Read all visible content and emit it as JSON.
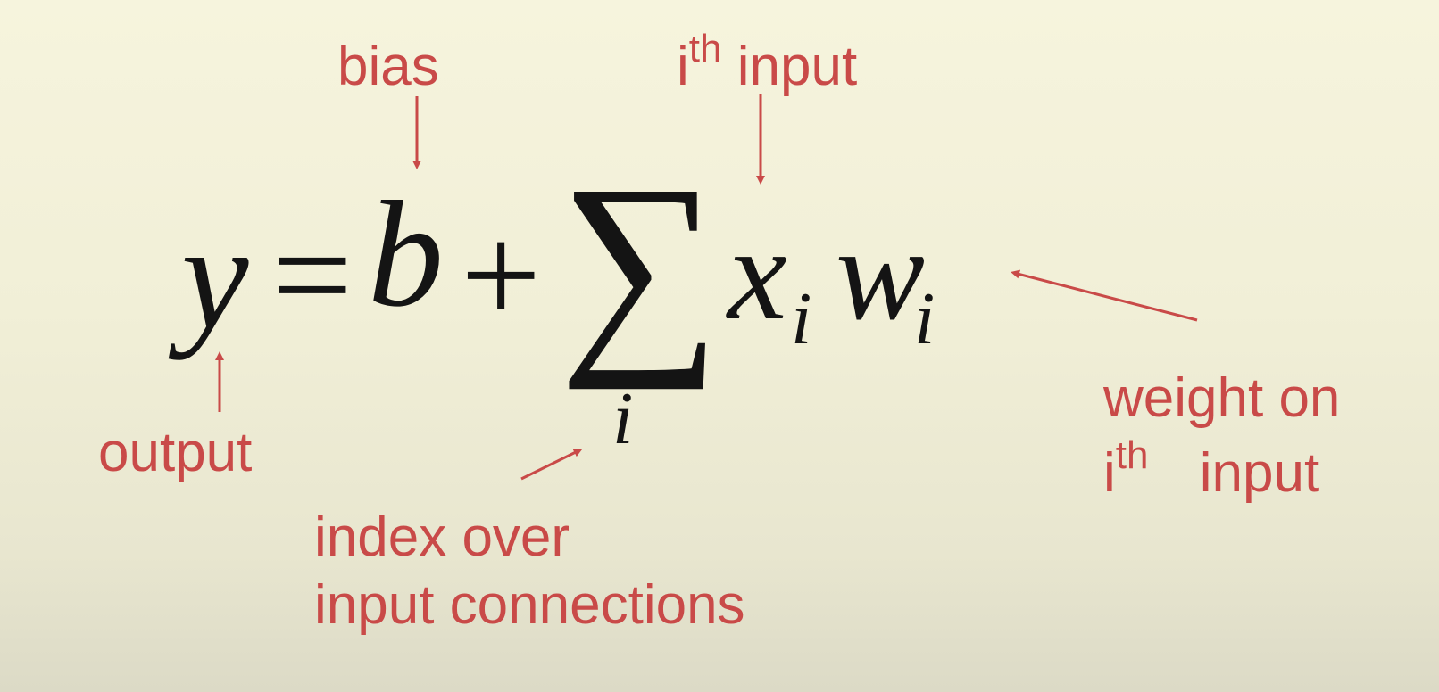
{
  "equation": {
    "y": "y",
    "equals": "=",
    "b": "b",
    "plus": "+",
    "sum": "∑",
    "sum_index": "i",
    "x": "x",
    "x_sub": "i",
    "w": "w",
    "w_sub": "i"
  },
  "annotations": {
    "bias": "bias",
    "ith_input_i": "i",
    "ith_input_th": "th",
    "ith_input_word": "input",
    "output": "output",
    "index_line1": "index over",
    "index_line2": "input connections",
    "weight_line1": "weight on",
    "weight_line2_i": "i",
    "weight_line2_th": "th",
    "weight_line2_word": "input"
  },
  "colors": {
    "annotation": "#c94a48",
    "equation": "#141414"
  }
}
